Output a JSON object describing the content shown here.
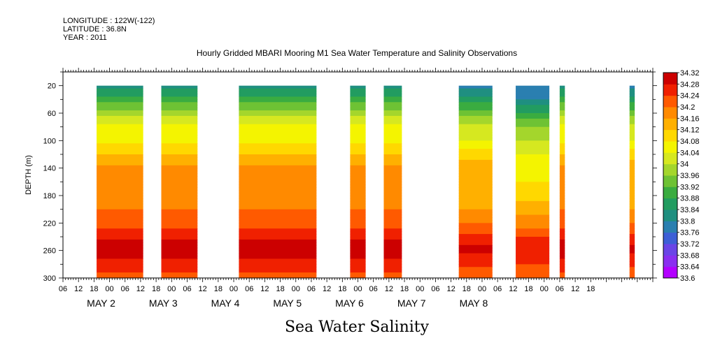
{
  "meta": {
    "longitude": "LONGITUDE : 122W(-122)",
    "latitude": "LATITUDE : 36.8N",
    "year": "YEAR : 2011"
  },
  "title": "Hourly Gridded MBARI Mooring M1 Sea Water Temperature and Salinity Observations",
  "bottom_title": "Sea Water Salinity",
  "chart_data": {
    "type": "heatmap",
    "title": "Hourly Gridded MBARI Mooring M1 Sea Water Temperature and Salinity Observations",
    "xlabel": "Sea Water Salinity",
    "ylabel": "DEPTH (m)",
    "x_range_hours": [
      0,
      228
    ],
    "ylim": [
      300,
      0
    ],
    "y_ticks": [
      20,
      60,
      100,
      140,
      180,
      220,
      260,
      300
    ],
    "x_hour_ticks": [
      "06",
      "12",
      "18",
      "00",
      "06",
      "12",
      "18",
      "00",
      "06",
      "12",
      "18",
      "00",
      "06",
      "12",
      "18",
      "00",
      "06",
      "12",
      "18",
      "00",
      "06",
      "12",
      "18",
      "00",
      "06",
      "12",
      "18",
      "00",
      "06",
      "12",
      "18",
      "00",
      "06",
      "12",
      "18"
    ],
    "day_labels": [
      "MAY  2",
      "MAY  3",
      "MAY  4",
      "MAY  5",
      "MAY  6",
      "MAY  7",
      "MAY  8"
    ],
    "colorbar_levels": [
      33.6,
      33.64,
      33.68,
      33.72,
      33.76,
      33.8,
      33.84,
      33.88,
      33.92,
      33.96,
      34,
      34.04,
      34.08,
      34.12,
      34.16,
      34.2,
      34.24,
      34.28,
      34.32
    ],
    "colorbar_labels": [
      "33.6",
      "33.64",
      "33.68",
      "33.72",
      "33.76",
      "33.8",
      "33.84",
      "33.88",
      "33.92",
      "33.96",
      "34",
      "34.04",
      "34.08",
      "34.12",
      "34.16",
      "34.2",
      "34.24",
      "34.28",
      "34.32"
    ],
    "data_blocks": [
      {
        "start_hour": 13,
        "end_hour": 31,
        "profile": "normal"
      },
      {
        "start_hour": 38,
        "end_hour": 52,
        "profile": "normal"
      },
      {
        "start_hour": 68,
        "end_hour": 98,
        "profile": "normal"
      },
      {
        "start_hour": 111,
        "end_hour": 117,
        "profile": "normal"
      },
      {
        "start_hour": 124,
        "end_hour": 131,
        "profile": "normal"
      },
      {
        "start_hour": 153,
        "end_hour": 166,
        "profile": "fresh_top"
      },
      {
        "start_hour": 175,
        "end_hour": 188,
        "profile": "fresh_top2"
      },
      {
        "start_hour": 192,
        "end_hour": 194,
        "profile": "normal"
      },
      {
        "start_hour": 219,
        "end_hour": 221,
        "profile": "fresh_top"
      }
    ],
    "depth_profile_normal": [
      [
        20,
        33.82
      ],
      [
        40,
        33.9
      ],
      [
        60,
        33.98
      ],
      [
        80,
        34.06
      ],
      [
        100,
        34.07
      ],
      [
        120,
        34.12
      ],
      [
        140,
        34.17
      ],
      [
        160,
        34.2
      ],
      [
        180,
        34.19
      ],
      [
        200,
        34.2
      ],
      [
        220,
        34.22
      ],
      [
        240,
        34.27
      ],
      [
        255,
        34.31
      ],
      [
        270,
        34.28
      ],
      [
        285,
        34.25
      ],
      [
        300,
        34.22
      ]
    ],
    "depth_profile_fresh_top": [
      [
        20,
        33.78
      ],
      [
        40,
        33.86
      ],
      [
        60,
        33.94
      ],
      [
        80,
        34.02
      ],
      [
        100,
        34.04
      ],
      [
        120,
        34.1
      ],
      [
        140,
        34.14
      ],
      [
        160,
        34.16
      ],
      [
        180,
        34.13
      ],
      [
        200,
        34.16
      ],
      [
        220,
        34.2
      ],
      [
        240,
        34.25
      ],
      [
        255,
        34.29
      ],
      [
        270,
        34.27
      ],
      [
        285,
        34.24
      ],
      [
        300,
        34.21
      ]
    ],
    "depth_profile_fresh_top2": [
      [
        20,
        33.76
      ],
      [
        40,
        33.8
      ],
      [
        60,
        33.88
      ],
      [
        80,
        33.96
      ],
      [
        100,
        34.0
      ],
      [
        120,
        34.04
      ],
      [
        140,
        34.06
      ],
      [
        160,
        34.08
      ],
      [
        180,
        34.1
      ],
      [
        200,
        34.14
      ],
      [
        220,
        34.18
      ],
      [
        240,
        34.24
      ],
      [
        255,
        34.28
      ],
      [
        270,
        34.26
      ],
      [
        285,
        34.23
      ],
      [
        300,
        34.2
      ]
    ],
    "colors": {
      "33.6": "#b300ff",
      "33.64": "#8a2ff0",
      "33.68": "#6a45e6",
      "33.72": "#3d5fd6",
      "33.76": "#2a7fb0",
      "33.8": "#1f8f80",
      "33.84": "#229c60",
      "33.88": "#3aac40",
      "33.92": "#6ec234",
      "33.96": "#a4d62c",
      "34": "#d6e820",
      "34.04": "#f4f400",
      "34.08": "#ffd800",
      "34.12": "#ffb000",
      "34.16": "#ff8a00",
      "34.2": "#ff5a00",
      "34.24": "#f02000",
      "34.28": "#cc0000",
      "34.32": "#8a0000"
    }
  }
}
